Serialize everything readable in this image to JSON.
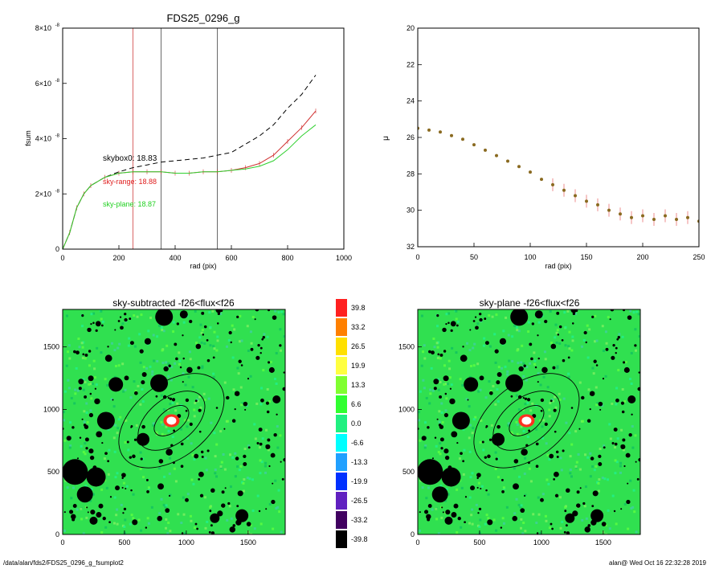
{
  "footer": {
    "left": "/data/alan/fds2/FDS25_0296_g_fsumplot2",
    "right": "alan@  Wed Oct 16 22:32:28 2019"
  },
  "chart_data": [
    {
      "type": "line",
      "title": "FDS25_0296_g",
      "xlabel": "rad (pix)",
      "ylabel": "fsum",
      "xlim": [
        0,
        1000
      ],
      "ylim": [
        0,
        8e-08
      ],
      "x_ticks": [
        "0",
        "200",
        "400",
        "600",
        "800",
        "1000"
      ],
      "y_tick_values": [
        0,
        2e-08,
        4e-08,
        6e-08,
        8e-08
      ],
      "y_ticks": [
        "0",
        "2×10",
        "4×10",
        "6×10",
        "8×10"
      ],
      "y_tick_exp": [
        "",
        "-8",
        "-8",
        "-8",
        "-8"
      ],
      "vertical_lines": [
        {
          "x": 250,
          "color": "#d04040"
        },
        {
          "x": 350,
          "color": "#444444"
        },
        {
          "x": 550,
          "color": "#444444"
        }
      ],
      "annotations": [
        {
          "text": "skybox0: 18.83",
          "color": "#000000"
        },
        {
          "text": "sky-range: 18.88",
          "color": "#e02020"
        },
        {
          "text": "sky-plane: 18.87",
          "color": "#20d020"
        }
      ],
      "series": [
        {
          "color": "#000000",
          "style": "dashed",
          "x": [
            0,
            25,
            50,
            75,
            100,
            150,
            200,
            250,
            300,
            350,
            400,
            450,
            500,
            550,
            600,
            650,
            700,
            750,
            800,
            850,
            900
          ],
          "y": [
            0,
            6e-09,
            1.5e-08,
            2e-08,
            2.3e-08,
            2.6e-08,
            2.8e-08,
            2.95e-08,
            3.05e-08,
            3.15e-08,
            3.2e-08,
            3.25e-08,
            3.3e-08,
            3.4e-08,
            3.5e-08,
            3.8e-08,
            4.1e-08,
            4.5e-08,
            5.1e-08,
            5.6e-08,
            6.3e-08
          ]
        },
        {
          "color": "#d03030",
          "style": "solid",
          "x": [
            0,
            25,
            50,
            75,
            100,
            150,
            200,
            250,
            300,
            350,
            400,
            450,
            500,
            550,
            600,
            650,
            700,
            750,
            800,
            850,
            900
          ],
          "y": [
            0,
            6e-09,
            1.5e-08,
            2e-08,
            2.3e-08,
            2.6e-08,
            2.75e-08,
            2.8e-08,
            2.8e-08,
            2.8e-08,
            2.75e-08,
            2.75e-08,
            2.8e-08,
            2.8e-08,
            2.85e-08,
            2.95e-08,
            3.1e-08,
            3.4e-08,
            3.9e-08,
            4.4e-08,
            5e-08
          ]
        },
        {
          "color": "#30d030",
          "style": "solid",
          "x": [
            0,
            25,
            50,
            75,
            100,
            150,
            200,
            250,
            300,
            350,
            400,
            450,
            500,
            550,
            600,
            650,
            700,
            750,
            800,
            850,
            900
          ],
          "y": [
            0,
            6e-09,
            1.5e-08,
            2e-08,
            2.3e-08,
            2.6e-08,
            2.75e-08,
            2.8e-08,
            2.8e-08,
            2.8e-08,
            2.75e-08,
            2.75e-08,
            2.8e-08,
            2.8e-08,
            2.85e-08,
            2.9e-08,
            3e-08,
            3.2e-08,
            3.6e-08,
            4.1e-08,
            4.5e-08
          ]
        }
      ]
    },
    {
      "type": "scatter",
      "title": "",
      "xlabel": "rad (pix)",
      "ylabel": "μ",
      "xlim": [
        0,
        250
      ],
      "ylim": [
        32,
        20
      ],
      "x_ticks": [
        "0",
        "50",
        "100",
        "150",
        "200",
        "250"
      ],
      "y_ticks": [
        "20",
        "22",
        "24",
        "26",
        "28",
        "30",
        "32"
      ],
      "series": [
        {
          "color": "#8a6a20",
          "x": [
            0,
            10,
            20,
            30,
            40,
            50,
            60,
            70,
            80,
            90,
            100,
            110,
            120,
            130,
            140,
            150,
            160,
            170,
            180,
            190,
            200,
            210,
            220,
            230,
            240,
            250
          ],
          "y": [
            25.5,
            25.6,
            25.7,
            25.9,
            26.1,
            26.4,
            26.7,
            27.0,
            27.3,
            27.6,
            27.9,
            28.3,
            28.6,
            28.9,
            29.2,
            29.5,
            29.7,
            30.0,
            30.2,
            30.4,
            30.3,
            30.5,
            30.3,
            30.5,
            30.4,
            30.6
          ]
        }
      ]
    },
    {
      "type": "heatmap",
      "title": "sky-subtracted -f26<flux<f26",
      "xlim": [
        0,
        1800
      ],
      "ylim": [
        0,
        1800
      ],
      "x_ticks": [
        "0",
        "500",
        "1000",
        "1500"
      ],
      "y_ticks": [
        "0",
        "500",
        "1000",
        "1500"
      ]
    },
    {
      "type": "heatmap",
      "title": "sky-plane -f26<flux<f26",
      "xlim": [
        0,
        1800
      ],
      "ylim": [
        0,
        1800
      ],
      "x_ticks": [
        "0",
        "500",
        "1000",
        "1500"
      ],
      "y_ticks": [
        "0",
        "500",
        "1000",
        "1500"
      ]
    }
  ],
  "colorbar": {
    "levels": [
      {
        "label": "39.8",
        "color": "#ff2020"
      },
      {
        "label": "33.2",
        "color": "#ff8000"
      },
      {
        "label": "26.5",
        "color": "#ffe000"
      },
      {
        "label": "19.9",
        "color": "#ffff40"
      },
      {
        "label": "13.3",
        "color": "#80ff30"
      },
      {
        "label": "6.6",
        "color": "#30ff30"
      },
      {
        "label": "0.0",
        "color": "#20f080"
      },
      {
        "label": "-6.6",
        "color": "#00ffff"
      },
      {
        "label": "-13.3",
        "color": "#20a0ff"
      },
      {
        "label": "-19.9",
        "color": "#0030ff"
      },
      {
        "label": "-26.5",
        "color": "#6020c0"
      },
      {
        "label": "-33.2",
        "color": "#400060"
      },
      {
        "label": "-39.8",
        "color": "#000000"
      }
    ]
  }
}
